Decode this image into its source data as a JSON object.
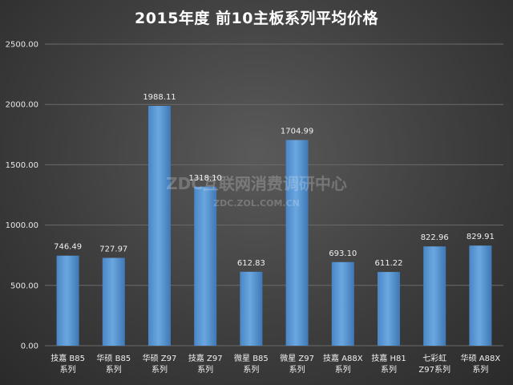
{
  "chart_data": {
    "type": "bar",
    "title": "2015年度 前10主板系列平均价格",
    "categories": [
      [
        "技嘉 B85",
        "系列"
      ],
      [
        "华硕 B85",
        "系列"
      ],
      [
        "华硕 Z97",
        "系列"
      ],
      [
        "技嘉 Z97",
        "系列"
      ],
      [
        "微星 B85",
        "系列"
      ],
      [
        "微星 Z97",
        "系列"
      ],
      [
        "技嘉 A88X",
        "系列"
      ],
      [
        "技嘉 H81",
        "系列"
      ],
      [
        "七彩虹",
        "Z97系列"
      ],
      [
        "华硕 A88X",
        "系列"
      ]
    ],
    "values": [
      746.49,
      727.97,
      1988.11,
      1318.1,
      612.83,
      1704.99,
      693.1,
      611.22,
      822.96,
      829.91
    ],
    "value_labels": [
      "746.49",
      "727.97",
      "1988.11",
      "1318.10",
      "612.83",
      "1704.99",
      "693.10",
      "611.22",
      "822.96",
      "829.91"
    ],
    "y_ticks": [
      "0.00",
      "500.00",
      "1000.00",
      "1500.00",
      "2000.00",
      "2500.00"
    ],
    "ylim": [
      0,
      2500
    ],
    "grid": true,
    "legend": "none",
    "bar_color": "#5b9bd5"
  },
  "watermark": {
    "line1": "ZDC互联网消费调研中心",
    "line2": "ZDC.ZOL.COM.CN"
  }
}
